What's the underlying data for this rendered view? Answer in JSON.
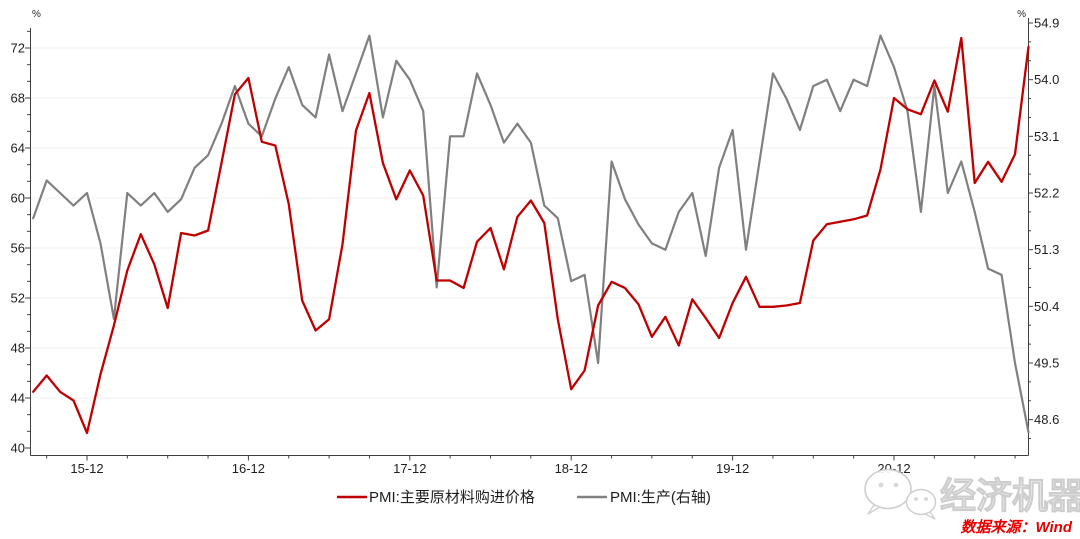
{
  "chart": {
    "left_axis": {
      "unit": "%",
      "min": 40,
      "max": 72,
      "step": 4,
      "tick_labels": [
        "40",
        "44",
        "48",
        "52",
        "56",
        "60",
        "64",
        "68",
        "72"
      ]
    },
    "right_axis": {
      "unit": "%",
      "min": 48.6,
      "max": 54.9,
      "step": 0.9,
      "tick_labels": [
        "48.6",
        "49.5",
        "50.4",
        "51.3",
        "52.2",
        "53.1",
        "54.0",
        "54.9"
      ]
    },
    "x_axis": {
      "tick_labels": [
        "15-12",
        "16-12",
        "17-12",
        "18-12",
        "19-12",
        "20-12"
      ]
    }
  },
  "chart_data": {
    "type": "line",
    "title": "",
    "x": [
      "2015-08",
      "2015-09",
      "2015-10",
      "2015-11",
      "2015-12",
      "2016-01",
      "2016-02",
      "2016-03",
      "2016-04",
      "2016-05",
      "2016-06",
      "2016-07",
      "2016-08",
      "2016-09",
      "2016-10",
      "2016-11",
      "2016-12",
      "2017-01",
      "2017-02",
      "2017-03",
      "2017-04",
      "2017-05",
      "2017-06",
      "2017-07",
      "2017-08",
      "2017-09",
      "2017-10",
      "2017-11",
      "2017-12",
      "2018-01",
      "2018-02",
      "2018-03",
      "2018-04",
      "2018-05",
      "2018-06",
      "2018-07",
      "2018-08",
      "2018-09",
      "2018-10",
      "2018-11",
      "2018-12",
      "2019-01",
      "2019-02",
      "2019-03",
      "2019-04",
      "2019-05",
      "2019-06",
      "2019-07",
      "2019-08",
      "2019-09",
      "2019-10",
      "2019-11",
      "2019-12",
      "2020-01",
      "2020-02",
      "2020-03",
      "2020-04",
      "2020-05",
      "2020-06",
      "2020-07",
      "2020-08",
      "2020-09",
      "2020-10",
      "2020-11",
      "2020-12",
      "2021-01",
      "2021-02",
      "2021-03",
      "2021-04",
      "2021-05",
      "2021-06",
      "2021-07",
      "2021-08",
      "2021-09",
      "2021-10"
    ],
    "series": [
      {
        "name": "PMI:主要原材料购进价格",
        "axis": "left",
        "color": "#c00000",
        "values": [
          44.5,
          45.8,
          44.5,
          43.8,
          41.2,
          45.9,
          49.8,
          54.2,
          57.1,
          54.7,
          51.2,
          57.2,
          57.0,
          57.4,
          62.8,
          68.3,
          69.6,
          64.5,
          64.2,
          59.5,
          51.8,
          49.4,
          50.3,
          56.3,
          65.4,
          68.4,
          62.8,
          59.9,
          62.2,
          60.2,
          53.4,
          53.4,
          52.8,
          56.5,
          57.6,
          54.3,
          58.5,
          59.8,
          58.0,
          50.3,
          44.7,
          46.2,
          51.4,
          53.3,
          52.8,
          51.5,
          48.9,
          50.5,
          48.2,
          51.9,
          50.4,
          48.8,
          51.6,
          53.7,
          51.3,
          51.3,
          51.4,
          51.6,
          56.6,
          57.9,
          58.1,
          58.3,
          58.6,
          62.3,
          68.0,
          67.1,
          66.7,
          69.4,
          66.9,
          72.8,
          61.2,
          62.9,
          61.3,
          63.5,
          72.1
        ]
      },
      {
        "name": "PMI:生产(右轴)",
        "axis": "right",
        "color": "#808080",
        "values": [
          51.8,
          52.4,
          52.2,
          52.0,
          52.2,
          51.4,
          50.2,
          52.2,
          52.0,
          52.2,
          51.9,
          52.1,
          52.6,
          52.8,
          53.3,
          53.9,
          53.3,
          53.1,
          53.7,
          54.2,
          53.6,
          53.4,
          54.4,
          53.5,
          54.1,
          54.7,
          53.4,
          54.3,
          54.0,
          53.5,
          50.7,
          53.1,
          53.1,
          54.1,
          53.6,
          53.0,
          53.3,
          53.0,
          52.0,
          51.8,
          50.8,
          50.9,
          49.5,
          52.7,
          52.1,
          51.7,
          51.4,
          51.3,
          51.9,
          52.2,
          51.2,
          52.6,
          53.2,
          51.3,
          52.7,
          54.1,
          53.7,
          53.2,
          53.9,
          54.0,
          53.5,
          54.0,
          53.9,
          54.7,
          54.2,
          53.5,
          51.9,
          53.9,
          52.2,
          52.7,
          51.9,
          51.0,
          50.9,
          49.5,
          48.4
        ]
      }
    ],
    "left_ylim": [
      40,
      72
    ],
    "right_ylim": [
      48.6,
      54.9
    ],
    "grid": "horizontal-faint",
    "legend_position": "bottom-center"
  },
  "legend": {
    "items": [
      {
        "label": "PMI:主要原材料购进价格",
        "color": "#c00000"
      },
      {
        "label": "PMI:生产(右轴)",
        "color": "#808080"
      }
    ]
  },
  "watermark": {
    "brand": "经济机器",
    "logo": "wechat-bubbles-icon"
  },
  "source_note": "数据来源：Wind",
  "colors": {
    "series_red": "#c00000",
    "series_gray": "#808080",
    "axis": "#404040",
    "grid": "#f1f1f1",
    "source_red": "#e60000"
  }
}
